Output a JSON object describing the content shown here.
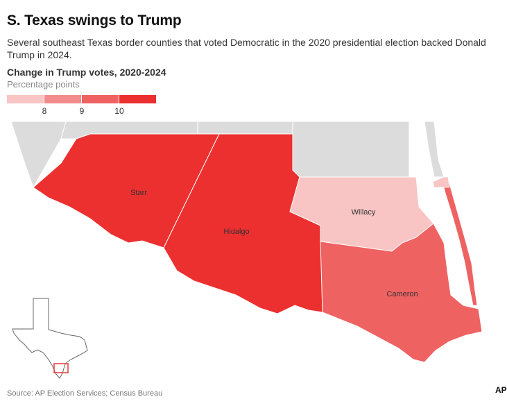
{
  "header": {
    "title": "S. Texas swings to Trump",
    "subtitle": "Several southeast Texas border counties that voted Democratic in the 2020 presidential election backed Donald Trump in 2024."
  },
  "legend": {
    "title": "Change in Trump votes, 2020-2024",
    "subtitle": "Percentage points",
    "swatch_colors": [
      "#f8c4c4",
      "#f28c8c",
      "#ee6262",
      "#ec2f2f"
    ],
    "ticks": [
      "8",
      "9",
      "10"
    ]
  },
  "counties": [
    {
      "name": "Starr",
      "color": "#ec2f2f"
    },
    {
      "name": "Hidalgo",
      "color": "#ec2f2f"
    },
    {
      "name": "Willacy",
      "color": "#f8c4c4"
    },
    {
      "name": "Cameron",
      "color": "#ee6262"
    }
  ],
  "colors": {
    "background_county": "#dcdcdc",
    "inset_highlight": "#e83a3a"
  },
  "footer": {
    "source": "Source: AP Election Services; Census Bureau",
    "logo": "AP"
  }
}
